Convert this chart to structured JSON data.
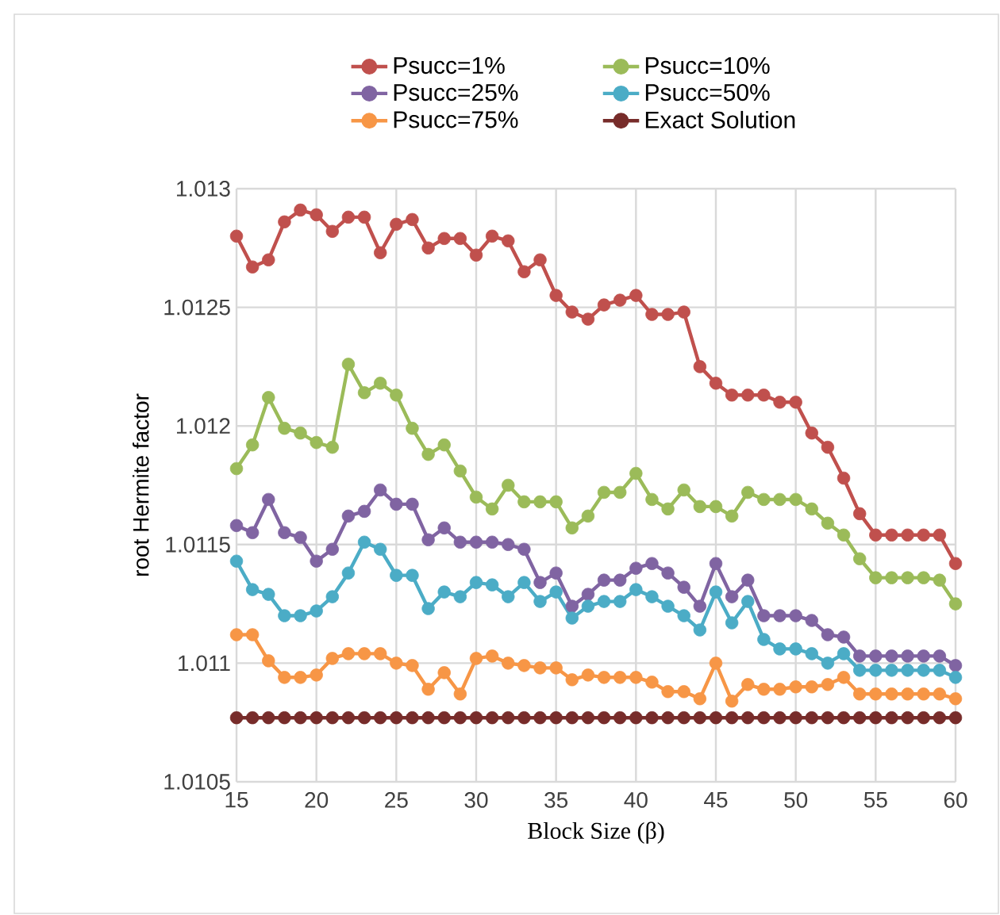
{
  "chart_data": {
    "type": "line",
    "xlabel": "Block Size (β)",
    "ylabel": "root Hermite factor",
    "x": [
      15,
      16,
      17,
      18,
      19,
      20,
      21,
      22,
      23,
      24,
      25,
      26,
      27,
      28,
      29,
      30,
      31,
      32,
      33,
      34,
      35,
      36,
      37,
      38,
      39,
      40,
      41,
      42,
      43,
      44,
      45,
      46,
      47,
      48,
      49,
      50,
      51,
      52,
      53,
      54,
      55,
      56,
      57,
      58,
      59,
      60
    ],
    "series": [
      {
        "name": "Psucc=1%",
        "color": "#c0504d",
        "values": [
          1.0128,
          1.01267,
          1.0127,
          1.01286,
          1.01291,
          1.01289,
          1.01282,
          1.01288,
          1.01288,
          1.01273,
          1.01285,
          1.01287,
          1.01275,
          1.01279,
          1.01279,
          1.01272,
          1.0128,
          1.01278,
          1.01265,
          1.0127,
          1.01255,
          1.01248,
          1.01245,
          1.01251,
          1.01253,
          1.01255,
          1.01247,
          1.01247,
          1.01248,
          1.01225,
          1.01218,
          1.01213,
          1.01213,
          1.01213,
          1.0121,
          1.0121,
          1.01197,
          1.01191,
          1.01178,
          1.01163,
          1.01154,
          1.01154,
          1.01154,
          1.01154,
          1.01154,
          1.01142
        ]
      },
      {
        "name": "Psucc=10%",
        "color": "#9bbb59",
        "values": [
          1.01182,
          1.01192,
          1.01212,
          1.01199,
          1.01197,
          1.01193,
          1.01191,
          1.01226,
          1.01214,
          1.01218,
          1.01213,
          1.01199,
          1.01188,
          1.01192,
          1.01181,
          1.0117,
          1.01165,
          1.01175,
          1.01168,
          1.01168,
          1.01168,
          1.01157,
          1.01162,
          1.01172,
          1.01172,
          1.0118,
          1.01169,
          1.01165,
          1.01173,
          1.01166,
          1.01166,
          1.01162,
          1.01172,
          1.01169,
          1.01169,
          1.01169,
          1.01165,
          1.01159,
          1.01154,
          1.01144,
          1.01136,
          1.01136,
          1.01136,
          1.01136,
          1.01135,
          1.01125
        ]
      },
      {
        "name": "Psucc=25%",
        "color": "#8064a2",
        "values": [
          1.01158,
          1.01155,
          1.01169,
          1.01155,
          1.01153,
          1.01143,
          1.01148,
          1.01162,
          1.01164,
          1.01173,
          1.01167,
          1.01167,
          1.01152,
          1.01157,
          1.01151,
          1.01151,
          1.01151,
          1.0115,
          1.01148,
          1.01134,
          1.01138,
          1.01124,
          1.01129,
          1.01135,
          1.01135,
          1.0114,
          1.01142,
          1.01138,
          1.01132,
          1.01124,
          1.01142,
          1.01128,
          1.01135,
          1.0112,
          1.0112,
          1.0112,
          1.01118,
          1.01112,
          1.01111,
          1.01103,
          1.01103,
          1.01103,
          1.01103,
          1.01103,
          1.01103,
          1.01099
        ]
      },
      {
        "name": "Psucc=50%",
        "color": "#4bacc6",
        "values": [
          1.01143,
          1.01131,
          1.01129,
          1.0112,
          1.0112,
          1.01122,
          1.01128,
          1.01138,
          1.01151,
          1.01148,
          1.01137,
          1.01137,
          1.01123,
          1.0113,
          1.01128,
          1.01134,
          1.01133,
          1.01128,
          1.01134,
          1.01126,
          1.0113,
          1.01119,
          1.01124,
          1.01126,
          1.01126,
          1.01131,
          1.01128,
          1.01124,
          1.0112,
          1.01114,
          1.0113,
          1.01117,
          1.01126,
          1.0111,
          1.01106,
          1.01106,
          1.01104,
          1.011,
          1.01104,
          1.01097,
          1.01097,
          1.01097,
          1.01097,
          1.01097,
          1.01097,
          1.01094
        ]
      },
      {
        "name": "Psucc=75%",
        "color": "#f79646",
        "values": [
          1.01112,
          1.01112,
          1.01101,
          1.01094,
          1.01094,
          1.01095,
          1.01102,
          1.01104,
          1.01104,
          1.01104,
          1.011,
          1.01099,
          1.01089,
          1.01096,
          1.01087,
          1.01102,
          1.01103,
          1.011,
          1.01099,
          1.01098,
          1.01098,
          1.01093,
          1.01095,
          1.01094,
          1.01094,
          1.01094,
          1.01092,
          1.01088,
          1.01088,
          1.01085,
          1.011,
          1.01084,
          1.01091,
          1.01089,
          1.01089,
          1.0109,
          1.0109,
          1.01091,
          1.01094,
          1.01087,
          1.01087,
          1.01087,
          1.01087,
          1.01087,
          1.01087,
          1.01085
        ]
      },
      {
        "name": "Exact Solution",
        "color": "#772c2a",
        "values": [
          1.01077,
          1.01077,
          1.01077,
          1.01077,
          1.01077,
          1.01077,
          1.01077,
          1.01077,
          1.01077,
          1.01077,
          1.01077,
          1.01077,
          1.01077,
          1.01077,
          1.01077,
          1.01077,
          1.01077,
          1.01077,
          1.01077,
          1.01077,
          1.01077,
          1.01077,
          1.01077,
          1.01077,
          1.01077,
          1.01077,
          1.01077,
          1.01077,
          1.01077,
          1.01077,
          1.01077,
          1.01077,
          1.01077,
          1.01077,
          1.01077,
          1.01077,
          1.01077,
          1.01077,
          1.01077,
          1.01077,
          1.01077,
          1.01077,
          1.01077,
          1.01077,
          1.01077,
          1.01077
        ]
      }
    ],
    "xlim": [
      15,
      60
    ],
    "xticks": [
      15,
      20,
      25,
      30,
      35,
      40,
      45,
      50,
      55,
      60
    ],
    "ylim": [
      1.0105,
      1.013
    ],
    "yticks": [
      1.0105,
      1.011,
      1.0115,
      1.012,
      1.0125,
      1.013
    ],
    "grid": true,
    "legend": "top",
    "marker": "circle",
    "line_style": "solid"
  }
}
